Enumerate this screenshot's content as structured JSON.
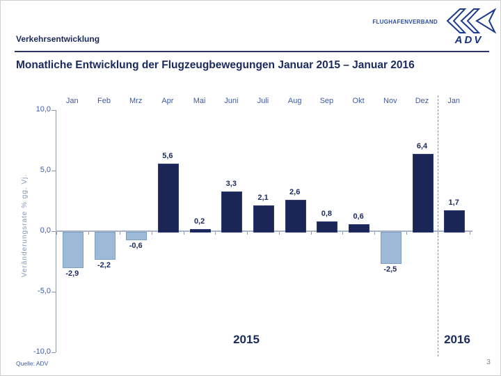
{
  "header": {
    "section_label": "Verkehrsentwicklung",
    "title": "Monatliche Entwicklung der Flugzeugbewegungen Januar 2015 – Januar 2016",
    "brand_text": "FLUGHAFENVERBAND",
    "brand_wordmark": "ADV"
  },
  "footer": {
    "source": "Quelle: ADV",
    "page_number": "3"
  },
  "chart_data": {
    "type": "bar",
    "title": "Monatliche Entwicklung der Flugzeugbewegungen Januar 2015 – Januar 2016",
    "categories": [
      "Jan",
      "Feb",
      "Mrz",
      "Apr",
      "Mai",
      "Juni",
      "Juli",
      "Aug",
      "Sep",
      "Okt",
      "Nov",
      "Dez",
      "Jan"
    ],
    "values": [
      -2.9,
      -2.2,
      -0.6,
      5.6,
      0.2,
      3.3,
      2.1,
      2.6,
      0.8,
      0.6,
      -2.5,
      6.4,
      1.7
    ],
    "value_labels": [
      "-2,9",
      "-2,2",
      "-0,6",
      "5,6",
      "0,2",
      "3,3",
      "2,1",
      "2,6",
      "0,8",
      "0,6",
      "-2,5",
      "6,4",
      "1,7"
    ],
    "ylabel": "Veränderungsrate % gg. Vj.",
    "yticks": [
      10,
      5,
      0,
      -5,
      -10
    ],
    "ytick_labels": [
      "10,0",
      "5,0",
      "0,0",
      "-5,0",
      "-10,0"
    ],
    "ylim": [
      -10,
      10
    ],
    "grid": false,
    "legend": false,
    "year_labels": [
      "2015",
      "2016"
    ],
    "year_divider": "dashed vertical line between Dez 2015 and Jan 2016",
    "positive_color": "#1b2556",
    "negative_color": "#9cb9d8",
    "label_color": "#3d5aa8",
    "value_label_color": "#1b2a5e"
  }
}
